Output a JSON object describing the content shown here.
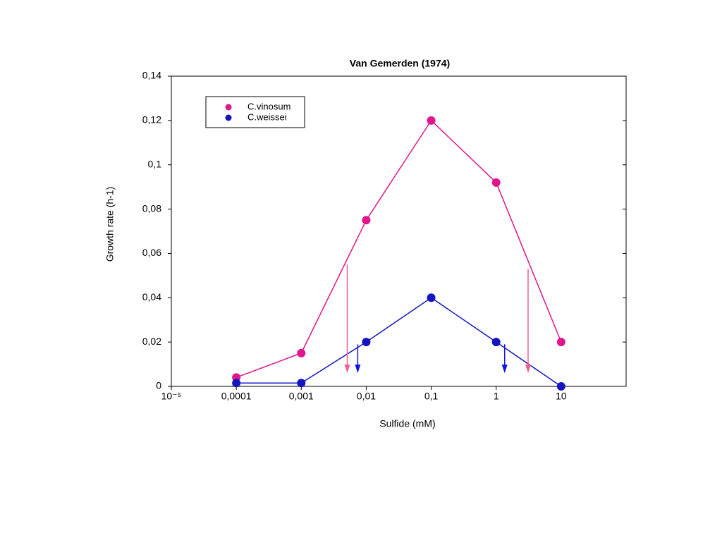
{
  "chart_data": {
    "type": "line",
    "title": "Van Gemerden (1974)",
    "x_label": "Sulfide (mM)",
    "y_label": "Growth rate (h-1)",
    "x_scale": "log",
    "x": [
      0.0001,
      0.001,
      0.01,
      0.1,
      1,
      10
    ],
    "series": [
      {
        "name": "C.vinosum",
        "color": "#e0168c",
        "values": [
          0.004,
          0.015,
          0.075,
          0.12,
          0.092,
          0.02
        ]
      },
      {
        "name": "C.weissei",
        "color": "#1414c0",
        "values": [
          0.0015,
          0.0015,
          0.02,
          0.04,
          0.02,
          0
        ]
      }
    ],
    "xlim": [
      1e-05,
      100
    ],
    "xticks": [
      {
        "value": 1e-05,
        "label": "10⁻⁵"
      },
      {
        "value": 0.0001,
        "label": "0,0001"
      },
      {
        "value": 0.001,
        "label": "0,001"
      },
      {
        "value": 0.01,
        "label": "0,01"
      },
      {
        "value": 0.1,
        "label": "0,1"
      },
      1,
      10
    ],
    "ylim": [
      0,
      0.14
    ],
    "yticks": [
      0,
      {
        "value": 0.02,
        "label": "0,02"
      },
      {
        "value": 0.04,
        "label": "0,04"
      },
      {
        "value": 0.06,
        "label": "0,06"
      },
      {
        "value": 0.08,
        "label": "0,08"
      },
      {
        "value": 0.1,
        "label": "0,1"
      },
      {
        "value": 0.12,
        "label": "0,12"
      },
      {
        "value": 0.14,
        "label": "0,14"
      }
    ],
    "legend": "upper left",
    "arrows": [
      {
        "x": 0.0051,
        "y_start": 0.055,
        "y_end": 0.006,
        "color": "#f06090"
      },
      {
        "x": 0.0074,
        "y_start": 0.019,
        "y_end": 0.006,
        "color": "#1414e0"
      },
      {
        "x": 1.35,
        "y_start": 0.019,
        "y_end": 0.006,
        "color": "#1414e0"
      },
      {
        "x": 3.1,
        "y_start": 0.053,
        "y_end": 0.006,
        "color": "#f06090"
      }
    ]
  }
}
